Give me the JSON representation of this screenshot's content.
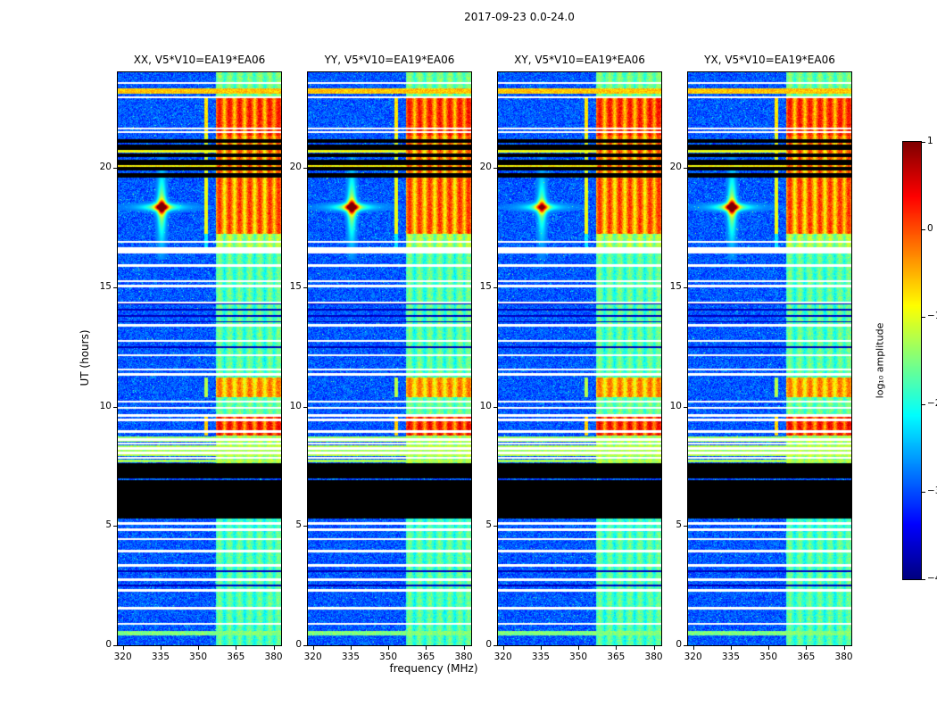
{
  "figure": {
    "title": "2017-09-23 0.0-24.0",
    "xlabel": "frequency (MHz)",
    "ylabel": "UT (hours)",
    "colorbar_label": "log₁₀ amplitude"
  },
  "chart_data": {
    "type": "heatmap",
    "title": "2017-09-23 0.0-24.0",
    "xlabel": "frequency (MHz)",
    "ylabel": "UT (hours)",
    "colormap": "jet",
    "panels": [
      {
        "label": "XX, V5*V10=EA19*EA06",
        "burst_amp": 1.0
      },
      {
        "label": "YY, V5*V10=EA19*EA06",
        "burst_amp": 1.0
      },
      {
        "label": "XY, V5*V10=EA19*EA06",
        "burst_amp": 0.75
      },
      {
        "label": "YX, V5*V10=EA19*EA06",
        "burst_amp": 1.0
      }
    ],
    "x_axis": {
      "range": [
        318,
        383
      ],
      "ticks": [
        320,
        335,
        350,
        365,
        380
      ]
    },
    "y_axis": {
      "range": [
        0,
        24
      ],
      "ticks": [
        0,
        5,
        10,
        15,
        20
      ]
    },
    "colorbar": {
      "range": [
        -4,
        1
      ],
      "ticks": [
        1,
        0,
        -1,
        -2,
        -3,
        -4
      ],
      "label": "log₁₀ amplitude"
    },
    "background": {
      "level": -2.95,
      "noise": 0.38,
      "speckle_prob": 0.015,
      "speckle_boost": 0.9
    },
    "rfi_band": {
      "f_start": 357,
      "f_end": 383,
      "stripe_freqs": [
        358.5,
        362.5,
        366.5,
        370.5,
        374.5,
        378.5,
        382
      ],
      "stripe_sigma": 1.4,
      "extra_line_freq": 353,
      "intervals": [
        {
          "t0": 0.0,
          "t1": 4.75,
          "base": -2.5,
          "peak": -1.55
        },
        {
          "t0": 4.75,
          "t1": 5.3,
          "base": -2.5,
          "peak": -1.7
        },
        {
          "t0": 7.62,
          "t1": 8.8,
          "base": -2.2,
          "peak": -1.2
        },
        {
          "t0": 8.8,
          "t1": 9.65,
          "base": -1.1,
          "peak": 0.45
        },
        {
          "t0": 9.65,
          "t1": 10.4,
          "base": -2.3,
          "peak": -1.45
        },
        {
          "t0": 10.4,
          "t1": 11.2,
          "base": -1.5,
          "peak": -0.15
        },
        {
          "t0": 11.2,
          "t1": 16.45,
          "base": -2.5,
          "peak": -1.5
        },
        {
          "t0": 16.45,
          "t1": 17.25,
          "base": -2.2,
          "peak": -1.1
        },
        {
          "t0": 17.25,
          "t1": 19.55,
          "base": -1.55,
          "peak": 0.15
        },
        {
          "t0": 19.55,
          "t1": 21.35,
          "base": -1.6,
          "peak": 0.05
        },
        {
          "t0": 21.35,
          "t1": 23.0,
          "base": -1.3,
          "peak": 0.35
        },
        {
          "t0": 23.0,
          "t1": 24.0,
          "base": -2.3,
          "peak": -1.4
        }
      ]
    },
    "blackouts": [
      [
        5.32,
        6.9
      ],
      [
        6.98,
        7.62
      ]
    ],
    "black_lines": [
      {
        "t": 19.68,
        "h": 0.2
      },
      {
        "t": 19.95,
        "h": 0.14
      },
      {
        "t": 20.22,
        "h": 0.2
      },
      {
        "t": 20.52,
        "h": 0.16
      },
      {
        "t": 20.85,
        "h": 0.22
      },
      {
        "t": 21.12,
        "h": 0.14
      }
    ],
    "dark_lines": [
      {
        "t": 2.5
      },
      {
        "t": 3.1
      },
      {
        "t": 12.5
      },
      {
        "t": 13.55
      },
      {
        "t": 13.8
      },
      {
        "t": 14.05
      },
      {
        "t": 14.3
      }
    ],
    "bright_lines": [
      {
        "t": 0.5,
        "h": 0.2,
        "level": -1.5
      },
      {
        "t": 7.72,
        "h": 0.08,
        "level": -1.3
      },
      {
        "t": 7.95,
        "h": 0.08,
        "level": -1.25
      },
      {
        "t": 8.15,
        "h": 0.08,
        "level": -1.35
      },
      {
        "t": 8.35,
        "h": 0.08,
        "level": -1.25
      },
      {
        "t": 8.55,
        "h": 0.08,
        "level": -1.3
      },
      {
        "t": 8.7,
        "h": 0.08,
        "level": -1.4
      },
      {
        "t": 20.05,
        "h": 0.1,
        "level": -0.85
      },
      {
        "t": 20.7,
        "h": 0.1,
        "level": -0.95
      },
      {
        "t": 23.2,
        "h": 0.22,
        "level": -0.6
      }
    ],
    "white_lines": [
      {
        "t": 0.9
      },
      {
        "t": 1.55
      },
      {
        "t": 2.3
      },
      {
        "t": 2.75
      },
      {
        "t": 3.35
      },
      {
        "t": 3.95
      },
      {
        "t": 4.45
      },
      {
        "t": 4.85
      },
      {
        "t": 5.1
      },
      {
        "t": 7.85
      },
      {
        "t": 8.05
      },
      {
        "t": 8.25
      },
      {
        "t": 8.45
      },
      {
        "t": 8.62
      },
      {
        "t": 8.95
      },
      {
        "t": 9.45
      },
      {
        "t": 9.62
      },
      {
        "t": 9.95
      },
      {
        "t": 10.2
      },
      {
        "t": 11.35
      },
      {
        "t": 11.55
      },
      {
        "t": 12.15
      },
      {
        "t": 12.75
      },
      {
        "t": 13.4
      },
      {
        "t": 14.35
      },
      {
        "t": 15.05
      },
      {
        "t": 15.25
      },
      {
        "t": 15.9
      },
      {
        "t": 16.55,
        "h": 0.28
      },
      {
        "t": 16.9
      },
      {
        "t": 21.5
      },
      {
        "t": 21.65
      },
      {
        "t": 22.95
      },
      {
        "t": 23.55
      }
    ],
    "burst": {
      "t": 18.35,
      "f": 335.5,
      "vert_sigma_f": 1.1,
      "vert_decay_t": 0.9,
      "horiz_sigma_t": 0.1,
      "horiz_decay_f": 5.0,
      "core_sigma_f": 1.6,
      "core_sigma_t": 0.16
    }
  }
}
